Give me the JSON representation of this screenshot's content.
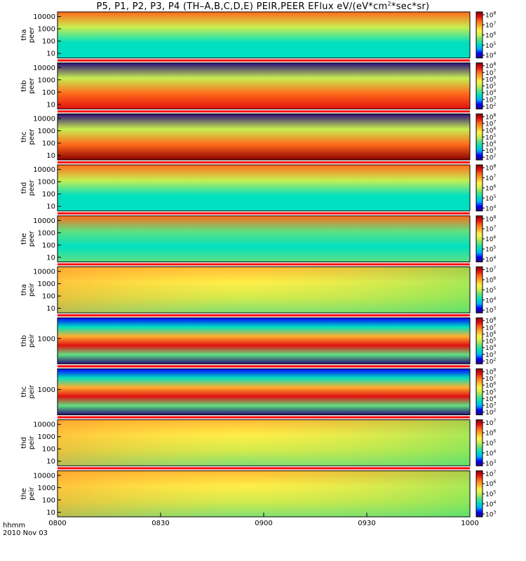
{
  "title_main": "P5, P1, P2, P3, P4 (TH–A,B,C,D,E) PEIR,PEER EFlux eV/(eV*cm",
  "title_sup": "2",
  "title_tail": "*sec*sr)",
  "footer": {
    "hhmm": "hhmm",
    "date": "2010 Nov 03"
  },
  "colors": {
    "colormap": [
      "#2a0a7a",
      "#0000ff",
      "#00b0ff",
      "#00e0c0",
      "#60e080",
      "#c8ee50",
      "#fff24a",
      "#ffb030",
      "#ff6a1a",
      "#e01010",
      "#8a0000"
    ],
    "separator": "#ff0000"
  },
  "chart_data": {
    "type": "heatmap",
    "xaxis": {
      "ticks": [
        "0800",
        "0830",
        "0900",
        "0930",
        "1000"
      ],
      "range": [
        "08:00",
        "10:00"
      ]
    },
    "panels": [
      {
        "probe": "tha",
        "species": "peer",
        "ylabels": [
          "10000",
          "1000",
          "100",
          "10"
        ],
        "log_y": true,
        "colorbar": {
          "base": "10",
          "exps": [
            "8",
            "7",
            "6",
            "5",
            "4"
          ]
        },
        "levels": [
          7.2,
          5.8,
          5.0,
          5.3
        ]
      },
      {
        "probe": "thb",
        "species": "peer",
        "ylabels": [
          "10000",
          "1000",
          "100",
          "10"
        ],
        "log_y": true,
        "colorbar": {
          "base": "10",
          "exps": [
            "8",
            "7",
            "6",
            "5",
            "4",
            "3",
            "2"
          ]
        },
        "levels": [
          1.8,
          5.0,
          6.5,
          7.6
        ]
      },
      {
        "probe": "thc",
        "species": "peer",
        "ylabels": [
          "10000",
          "1000",
          "100",
          "10"
        ],
        "log_y": true,
        "colorbar": {
          "base": "10",
          "exps": [
            "8",
            "7",
            "6",
            "5",
            "4",
            "3",
            "2"
          ]
        },
        "levels": [
          1.5,
          4.8,
          6.6,
          7.7
        ]
      },
      {
        "probe": "thd",
        "species": "peer",
        "ylabels": [
          "10000",
          "1000",
          "100",
          "10"
        ],
        "log_y": true,
        "colorbar": {
          "base": "10",
          "exps": [
            "8",
            "7",
            "6",
            "5",
            "4"
          ]
        },
        "levels": [
          7.2,
          5.8,
          5.1,
          5.3
        ]
      },
      {
        "probe": "the",
        "species": "peer",
        "ylabels": [
          "10000",
          "1000",
          "100",
          "10"
        ],
        "log_y": true,
        "colorbar": {
          "base": "10",
          "exps": [
            "8",
            "7",
            "6",
            "5",
            "4"
          ]
        },
        "levels": [
          7.0,
          5.6,
          5.1,
          5.5
        ]
      },
      {
        "probe": "tha",
        "species": "peir",
        "ylabels": [
          "10000",
          "1000",
          "100",
          "10"
        ],
        "log_y": true,
        "colorbar": {
          "base": "10",
          "exps": [
            "7",
            "6",
            "5",
            "4",
            "3"
          ]
        },
        "levels": [
          5.8,
          5.5,
          5.0,
          4.6
        ]
      },
      {
        "probe": "thb",
        "species": "peir",
        "ylabels": [
          "1000"
        ],
        "log_y": true,
        "colorbar": {
          "base": "10",
          "exps": [
            "8",
            "7",
            "6",
            "5",
            "4",
            "3",
            "2"
          ]
        },
        "levels": [
          2.5,
          4.0,
          6.4,
          7.6,
          4.5,
          2.2
        ]
      },
      {
        "probe": "thc",
        "species": "peir",
        "ylabels": [
          "1000"
        ],
        "log_y": true,
        "colorbar": {
          "base": "10",
          "exps": [
            "8",
            "7",
            "6",
            "5",
            "4",
            "3",
            "2"
          ]
        },
        "levels": [
          2.5,
          4.0,
          6.4,
          7.6,
          4.5,
          2.2
        ]
      },
      {
        "probe": "thd",
        "species": "peir",
        "ylabels": [
          "10000",
          "1000",
          "100",
          "10"
        ],
        "log_y": true,
        "colorbar": {
          "base": "10",
          "exps": [
            "7",
            "6",
            "5",
            "4",
            "3"
          ]
        },
        "levels": [
          5.8,
          5.5,
          5.0,
          4.6
        ]
      },
      {
        "probe": "the",
        "species": "peir",
        "ylabels": [
          "10000",
          "1000",
          "100",
          "10"
        ],
        "log_y": true,
        "colorbar": {
          "base": "10",
          "exps": [
            "7",
            "6",
            "5",
            "4",
            "3"
          ]
        },
        "levels": [
          5.8,
          5.5,
          5.0,
          4.6
        ]
      }
    ]
  }
}
